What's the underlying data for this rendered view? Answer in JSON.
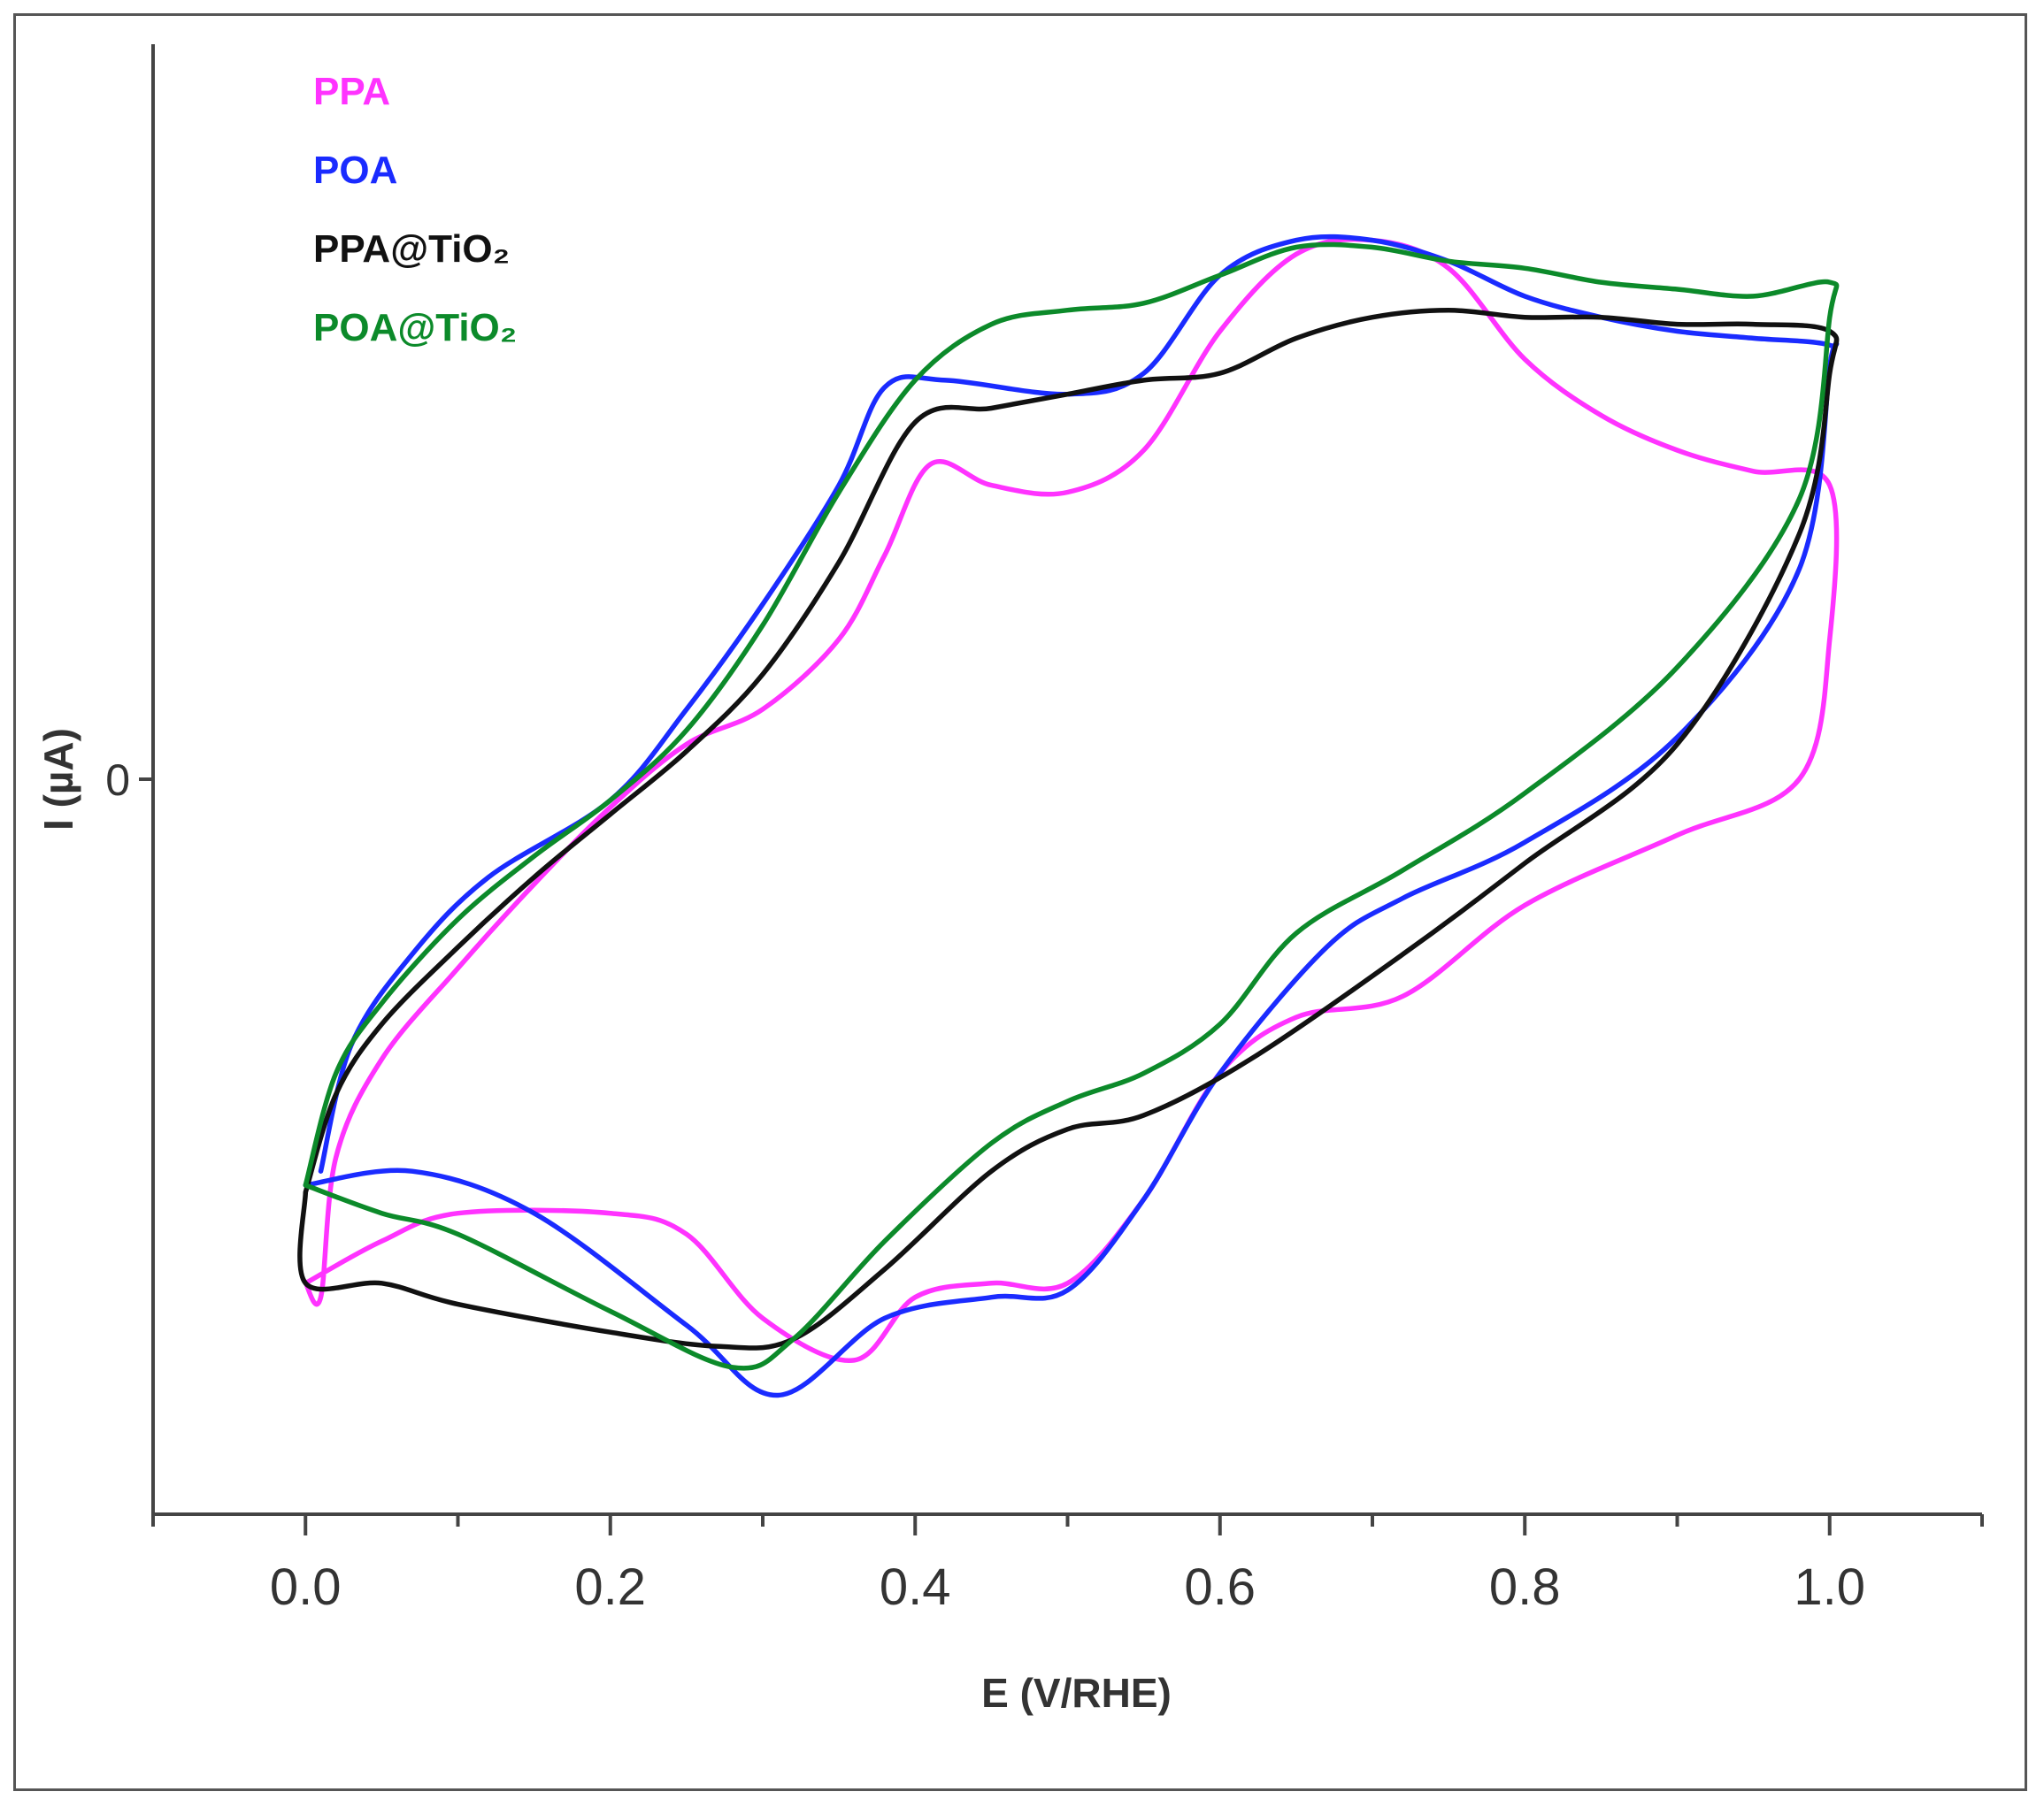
{
  "chart_data": {
    "type": "line",
    "title": "",
    "xlabel": "E (V/RHE)",
    "ylabel": "I (µA)",
    "xlim": [
      -0.1,
      1.1
    ],
    "ylim": [
      -1.05,
      1.05
    ],
    "x_ticks": [
      "0.0",
      "0.2",
      "0.4",
      "0.6",
      "0.8",
      "1.0"
    ],
    "y_ticks": [
      "0"
    ],
    "legend_position": "top-left",
    "series": [
      {
        "name": "PPA",
        "color": "#ff33ff",
        "points": [
          [
            0.0,
            -0.72
          ],
          [
            0.01,
            -0.74
          ],
          [
            0.02,
            -0.54
          ],
          [
            0.05,
            -0.4
          ],
          [
            0.1,
            -0.27
          ],
          [
            0.15,
            -0.15
          ],
          [
            0.2,
            -0.04
          ],
          [
            0.25,
            0.05
          ],
          [
            0.3,
            0.1
          ],
          [
            0.35,
            0.2
          ],
          [
            0.38,
            0.32
          ],
          [
            0.41,
            0.45
          ],
          [
            0.45,
            0.42
          ],
          [
            0.5,
            0.41
          ],
          [
            0.55,
            0.47
          ],
          [
            0.6,
            0.64
          ],
          [
            0.65,
            0.75
          ],
          [
            0.7,
            0.77
          ],
          [
            0.75,
            0.73
          ],
          [
            0.8,
            0.6
          ],
          [
            0.85,
            0.52
          ],
          [
            0.9,
            0.47
          ],
          [
            0.95,
            0.44
          ],
          [
            1.0,
            0.42
          ],
          [
            1.0,
            0.2
          ],
          [
            0.98,
            0.0
          ],
          [
            0.9,
            -0.08
          ],
          [
            0.8,
            -0.18
          ],
          [
            0.72,
            -0.31
          ],
          [
            0.65,
            -0.34
          ],
          [
            0.6,
            -0.42
          ],
          [
            0.55,
            -0.6
          ],
          [
            0.5,
            -0.72
          ],
          [
            0.45,
            -0.72
          ],
          [
            0.4,
            -0.74
          ],
          [
            0.36,
            -0.83
          ],
          [
            0.3,
            -0.77
          ],
          [
            0.25,
            -0.65
          ],
          [
            0.2,
            -0.62
          ],
          [
            0.1,
            -0.62
          ],
          [
            0.05,
            -0.66
          ],
          [
            0.0,
            -0.72
          ]
        ]
      },
      {
        "name": "POA",
        "color": "#1a2bff",
        "points": [
          [
            0.01,
            -0.56
          ],
          [
            0.03,
            -0.38
          ],
          [
            0.07,
            -0.25
          ],
          [
            0.12,
            -0.14
          ],
          [
            0.2,
            -0.03
          ],
          [
            0.25,
            0.1
          ],
          [
            0.3,
            0.25
          ],
          [
            0.35,
            0.42
          ],
          [
            0.38,
            0.56
          ],
          [
            0.42,
            0.57
          ],
          [
            0.5,
            0.55
          ],
          [
            0.55,
            0.58
          ],
          [
            0.6,
            0.72
          ],
          [
            0.65,
            0.77
          ],
          [
            0.7,
            0.77
          ],
          [
            0.75,
            0.74
          ],
          [
            0.8,
            0.69
          ],
          [
            0.85,
            0.66
          ],
          [
            0.9,
            0.64
          ],
          [
            0.95,
            0.63
          ],
          [
            1.0,
            0.62
          ],
          [
            1.0,
            0.59
          ],
          [
            0.98,
            0.3
          ],
          [
            0.9,
            0.06
          ],
          [
            0.8,
            -0.09
          ],
          [
            0.72,
            -0.17
          ],
          [
            0.67,
            -0.24
          ],
          [
            0.6,
            -0.42
          ],
          [
            0.55,
            -0.6
          ],
          [
            0.5,
            -0.73
          ],
          [
            0.45,
            -0.74
          ],
          [
            0.38,
            -0.77
          ],
          [
            0.31,
            -0.88
          ],
          [
            0.25,
            -0.78
          ],
          [
            0.15,
            -0.62
          ],
          [
            0.07,
            -0.56
          ],
          [
            0.0,
            -0.58
          ]
        ]
      },
      {
        "name": "PPA@TiO₂",
        "color": "#111111",
        "points": [
          [
            0.0,
            -0.59
          ],
          [
            0.02,
            -0.45
          ],
          [
            0.05,
            -0.35
          ],
          [
            0.1,
            -0.24
          ],
          [
            0.15,
            -0.14
          ],
          [
            0.2,
            -0.05
          ],
          [
            0.25,
            0.04
          ],
          [
            0.3,
            0.15
          ],
          [
            0.35,
            0.31
          ],
          [
            0.4,
            0.51
          ],
          [
            0.45,
            0.53
          ],
          [
            0.5,
            0.55
          ],
          [
            0.55,
            0.57
          ],
          [
            0.6,
            0.58
          ],
          [
            0.65,
            0.63
          ],
          [
            0.7,
            0.66
          ],
          [
            0.75,
            0.67
          ],
          [
            0.8,
            0.66
          ],
          [
            0.85,
            0.66
          ],
          [
            0.9,
            0.65
          ],
          [
            0.95,
            0.65
          ],
          [
            1.0,
            0.64
          ],
          [
            1.0,
            0.58
          ],
          [
            0.98,
            0.35
          ],
          [
            0.9,
            0.05
          ],
          [
            0.8,
            -0.12
          ],
          [
            0.72,
            -0.25
          ],
          [
            0.62,
            -0.4
          ],
          [
            0.55,
            -0.48
          ],
          [
            0.5,
            -0.5
          ],
          [
            0.45,
            -0.56
          ],
          [
            0.38,
            -0.7
          ],
          [
            0.32,
            -0.8
          ],
          [
            0.27,
            -0.81
          ],
          [
            0.2,
            -0.79
          ],
          [
            0.1,
            -0.75
          ],
          [
            0.05,
            -0.72
          ],
          [
            0.0,
            -0.72
          ],
          [
            0.0,
            -0.59
          ]
        ]
      },
      {
        "name": "POA@TiO₂",
        "color": "#0c8a2a",
        "points": [
          [
            0.0,
            -0.58
          ],
          [
            0.02,
            -0.42
          ],
          [
            0.05,
            -0.32
          ],
          [
            0.1,
            -0.2
          ],
          [
            0.15,
            -0.11
          ],
          [
            0.2,
            -0.03
          ],
          [
            0.25,
            0.07
          ],
          [
            0.3,
            0.22
          ],
          [
            0.35,
            0.41
          ],
          [
            0.4,
            0.57
          ],
          [
            0.45,
            0.65
          ],
          [
            0.5,
            0.67
          ],
          [
            0.55,
            0.68
          ],
          [
            0.6,
            0.72
          ],
          [
            0.65,
            0.76
          ],
          [
            0.7,
            0.76
          ],
          [
            0.75,
            0.74
          ],
          [
            0.8,
            0.73
          ],
          [
            0.85,
            0.71
          ],
          [
            0.9,
            0.7
          ],
          [
            0.95,
            0.69
          ],
          [
            1.0,
            0.71
          ],
          [
            1.0,
            0.66
          ],
          [
            0.98,
            0.4
          ],
          [
            0.9,
            0.16
          ],
          [
            0.8,
            -0.02
          ],
          [
            0.72,
            -0.13
          ],
          [
            0.65,
            -0.22
          ],
          [
            0.6,
            -0.35
          ],
          [
            0.55,
            -0.42
          ],
          [
            0.5,
            -0.46
          ],
          [
            0.45,
            -0.52
          ],
          [
            0.38,
            -0.66
          ],
          [
            0.32,
            -0.8
          ],
          [
            0.28,
            -0.84
          ],
          [
            0.2,
            -0.76
          ],
          [
            0.1,
            -0.65
          ],
          [
            0.05,
            -0.62
          ],
          [
            0.0,
            -0.58
          ]
        ]
      }
    ]
  }
}
